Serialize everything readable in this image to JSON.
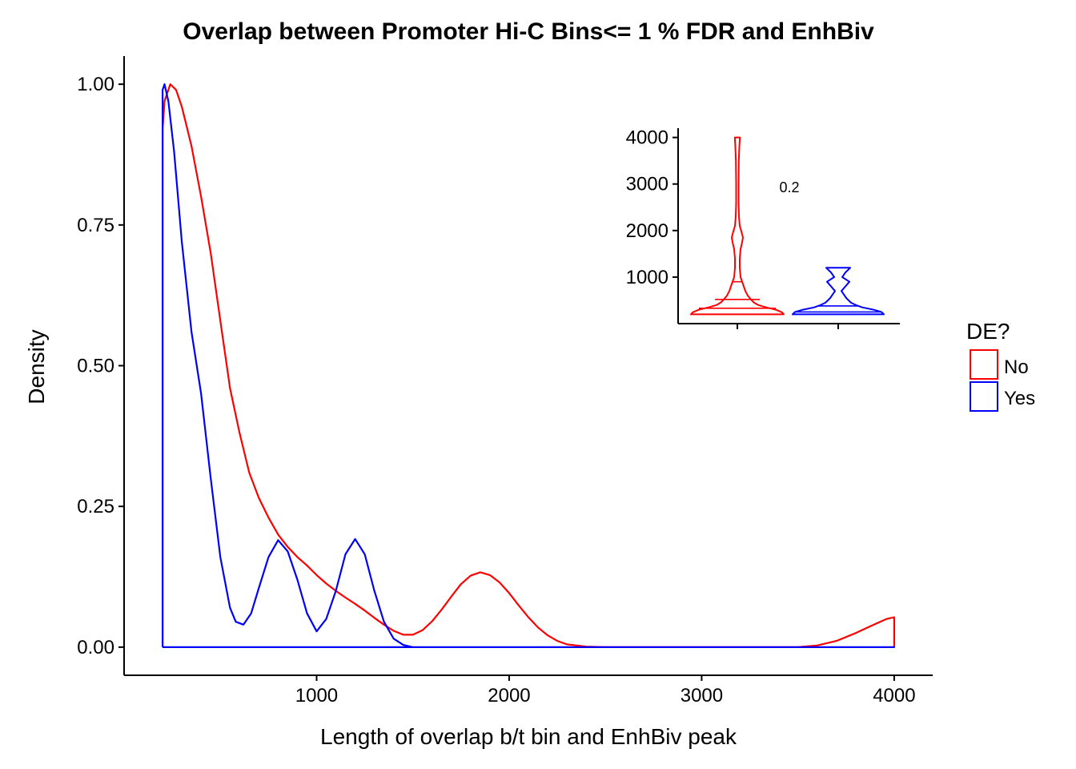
{
  "chart_data": [
    {
      "type": "area",
      "title": "Overlap between Promoter Hi-C Bins<= 1 % FDR and EnhBiv",
      "xlabel": "Length of overlap b/t bin and EnhBiv peak",
      "ylabel": "Density",
      "xlim": [
        0,
        4200
      ],
      "ylim": [
        -0.05,
        1.05
      ],
      "x_ticks": [
        1000,
        2000,
        3000,
        4000
      ],
      "x_tick_labels": [
        "1000",
        "2000",
        "3000",
        "4000"
      ],
      "y_ticks": [
        0,
        0.25,
        0.5,
        0.75,
        1.0
      ],
      "y_tick_labels": [
        "0.00",
        "0.25",
        "0.50",
        "0.75",
        "1.00"
      ],
      "grid": false,
      "legend": {
        "title": "DE?",
        "position": "right",
        "entries": [
          {
            "label": "No",
            "color": "#ff0000"
          },
          {
            "label": "Yes",
            "color": "#0000ff"
          }
        ]
      },
      "series": [
        {
          "name": "No",
          "color": "#ff0000",
          "points": [
            [
              200,
              0
            ],
            [
              200,
              0.92
            ],
            [
              210,
              0.97
            ],
            [
              240,
              1.0
            ],
            [
              270,
              0.99
            ],
            [
              300,
              0.96
            ],
            [
              350,
              0.89
            ],
            [
              400,
              0.8
            ],
            [
              450,
              0.7
            ],
            [
              500,
              0.58
            ],
            [
              550,
              0.46
            ],
            [
              600,
              0.38
            ],
            [
              650,
              0.31
            ],
            [
              700,
              0.265
            ],
            [
              750,
              0.23
            ],
            [
              800,
              0.2
            ],
            [
              850,
              0.178
            ],
            [
              900,
              0.16
            ],
            [
              950,
              0.145
            ],
            [
              1000,
              0.128
            ],
            [
              1050,
              0.113
            ],
            [
              1100,
              0.1
            ],
            [
              1150,
              0.088
            ],
            [
              1200,
              0.077
            ],
            [
              1250,
              0.065
            ],
            [
              1300,
              0.052
            ],
            [
              1350,
              0.04
            ],
            [
              1400,
              0.029
            ],
            [
              1450,
              0.022
            ],
            [
              1500,
              0.022
            ],
            [
              1550,
              0.03
            ],
            [
              1600,
              0.046
            ],
            [
              1650,
              0.067
            ],
            [
              1700,
              0.09
            ],
            [
              1750,
              0.112
            ],
            [
              1800,
              0.127
            ],
            [
              1850,
              0.133
            ],
            [
              1900,
              0.128
            ],
            [
              1950,
              0.115
            ],
            [
              2000,
              0.096
            ],
            [
              2050,
              0.074
            ],
            [
              2100,
              0.053
            ],
            [
              2150,
              0.035
            ],
            [
              2200,
              0.021
            ],
            [
              2250,
              0.011
            ],
            [
              2300,
              0.005
            ],
            [
              2400,
              0.001
            ],
            [
              2500,
              0
            ],
            [
              3500,
              0
            ],
            [
              3600,
              0.003
            ],
            [
              3700,
              0.011
            ],
            [
              3800,
              0.025
            ],
            [
              3900,
              0.041
            ],
            [
              3960,
              0.05
            ],
            [
              4000,
              0.053
            ],
            [
              4000,
              0
            ]
          ]
        },
        {
          "name": "Yes",
          "color": "#0000ff",
          "points": [
            [
              200,
              0
            ],
            [
              200,
              0.99
            ],
            [
              210,
              1.0
            ],
            [
              230,
              0.97
            ],
            [
              260,
              0.88
            ],
            [
              300,
              0.72
            ],
            [
              350,
              0.56
            ],
            [
              400,
              0.45
            ],
            [
              450,
              0.3
            ],
            [
              500,
              0.16
            ],
            [
              550,
              0.07
            ],
            [
              580,
              0.045
            ],
            [
              620,
              0.04
            ],
            [
              660,
              0.06
            ],
            [
              700,
              0.105
            ],
            [
              750,
              0.16
            ],
            [
              800,
              0.19
            ],
            [
              850,
              0.17
            ],
            [
              900,
              0.12
            ],
            [
              950,
              0.06
            ],
            [
              1000,
              0.028
            ],
            [
              1050,
              0.05
            ],
            [
              1100,
              0.1
            ],
            [
              1150,
              0.165
            ],
            [
              1200,
              0.192
            ],
            [
              1250,
              0.165
            ],
            [
              1300,
              0.1
            ],
            [
              1350,
              0.045
            ],
            [
              1400,
              0.015
            ],
            [
              1450,
              0.004
            ],
            [
              1500,
              0
            ],
            [
              4000,
              0
            ],
            [
              200,
              0
            ]
          ]
        }
      ]
    },
    {
      "type": "violin",
      "ylim": [
        0,
        4200
      ],
      "y_ticks": [
        1000,
        2000,
        3000,
        4000
      ],
      "y_tick_labels": [
        "1000",
        "2000",
        "3000",
        "4000"
      ],
      "categories": [
        "No",
        "Yes"
      ],
      "annotation": "0.2",
      "series": [
        {
          "name": "No",
          "color": "#ff0000",
          "profile": [
            [
              200,
              58
            ],
            [
              240,
              56
            ],
            [
              300,
              48
            ],
            [
              350,
              36
            ],
            [
              400,
              26
            ],
            [
              450,
              21
            ],
            [
              500,
              18
            ],
            [
              600,
              13
            ],
            [
              700,
              10
            ],
            [
              800,
              8
            ],
            [
              900,
              6
            ],
            [
              1000,
              4
            ],
            [
              1200,
              3
            ],
            [
              1400,
              3
            ],
            [
              1600,
              4
            ],
            [
              1750,
              6
            ],
            [
              1850,
              7
            ],
            [
              1950,
              5.5
            ],
            [
              2100,
              3
            ],
            [
              2300,
              2
            ],
            [
              2600,
              1.5
            ],
            [
              3000,
              1.5
            ],
            [
              3500,
              1.8
            ],
            [
              3800,
              2.5
            ],
            [
              4000,
              3.2
            ]
          ],
          "quantile_lines": [
            [
              330,
              48
            ],
            [
              520,
              28
            ],
            [
              900,
              6
            ]
          ]
        },
        {
          "name": "Yes",
          "color": "#0000ff",
          "profile": [
            [
              200,
              57
            ],
            [
              250,
              54
            ],
            [
              300,
              44
            ],
            [
              350,
              30
            ],
            [
              400,
              22
            ],
            [
              450,
              16
            ],
            [
              500,
              13
            ],
            [
              550,
              10
            ],
            [
              600,
              8
            ],
            [
              700,
              4
            ],
            [
              800,
              9
            ],
            [
              900,
              14
            ],
            [
              1000,
              5
            ],
            [
              1100,
              9
            ],
            [
              1200,
              15
            ]
          ],
          "quantile_lines": [
            [
              250,
              53
            ],
            [
              380,
              26
            ]
          ]
        }
      ]
    }
  ]
}
